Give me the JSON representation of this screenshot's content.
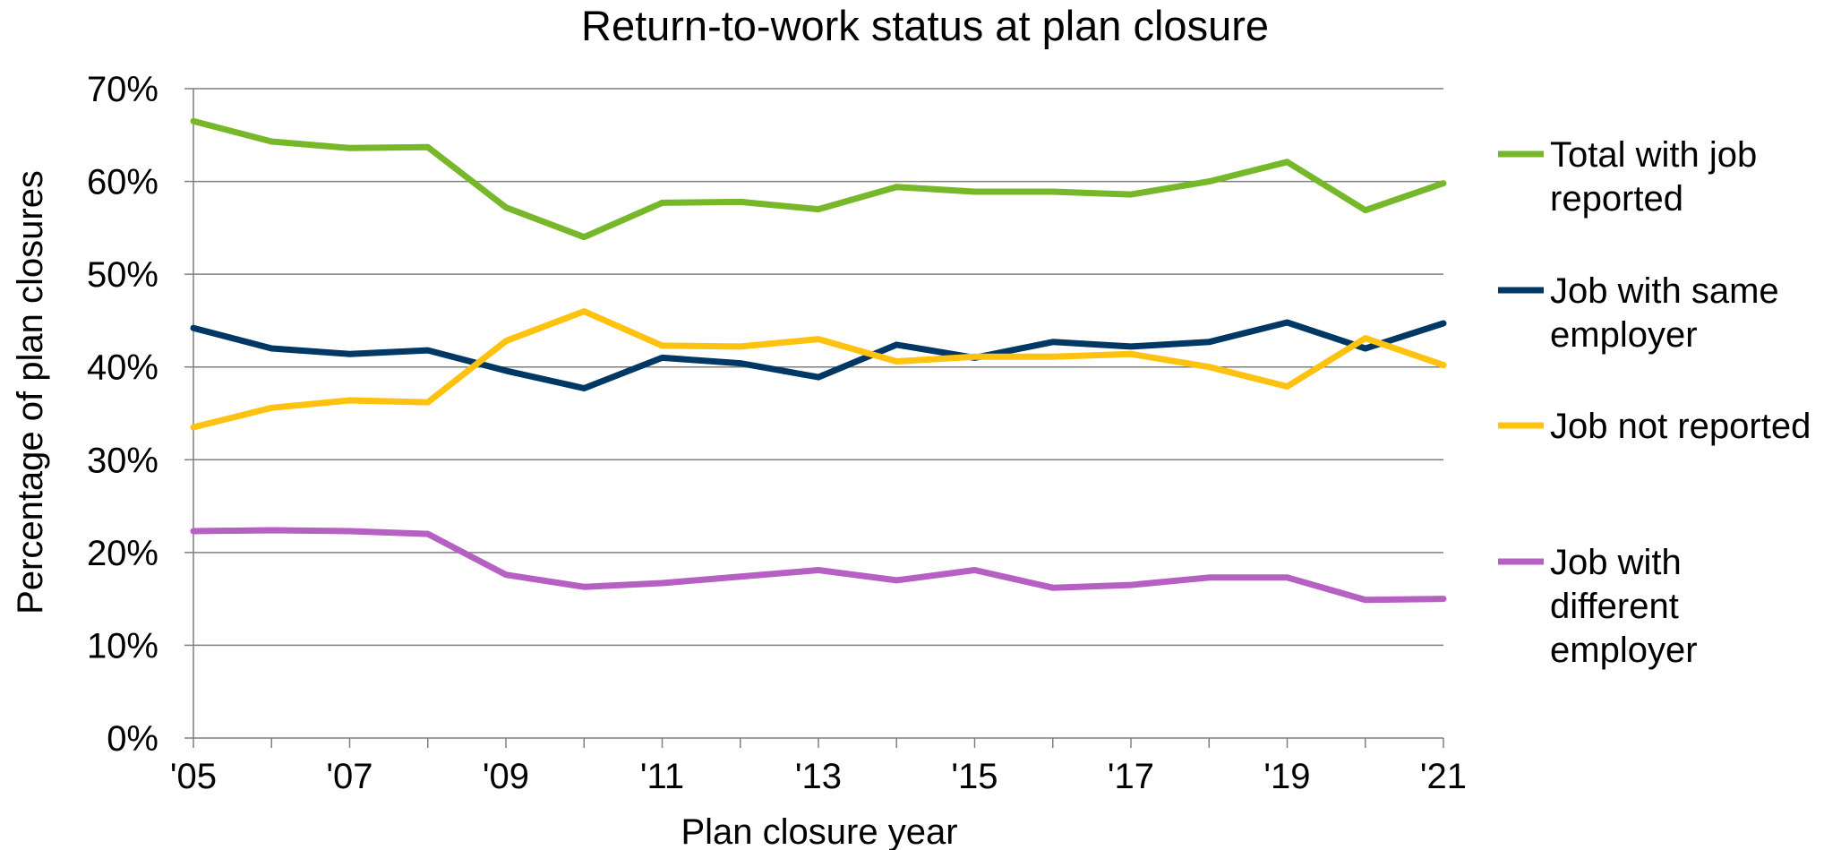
{
  "chart_data": {
    "type": "line",
    "title": "Return-to-work status at plan closure",
    "xlabel": "Plan closure year",
    "ylabel": "Percentage of plan closures",
    "x": [
      2005,
      2006,
      2007,
      2008,
      2009,
      2010,
      2011,
      2012,
      2013,
      2014,
      2015,
      2016,
      2017,
      2018,
      2019,
      2020,
      2021
    ],
    "x_tick_labels": [
      {
        "x": 2005,
        "label": "'05"
      },
      {
        "x": 2007,
        "label": "'07"
      },
      {
        "x": 2009,
        "label": "'09"
      },
      {
        "x": 2011,
        "label": "'11"
      },
      {
        "x": 2013,
        "label": "'13"
      },
      {
        "x": 2015,
        "label": "'15"
      },
      {
        "x": 2017,
        "label": "'17"
      },
      {
        "x": 2019,
        "label": "'19"
      },
      {
        "x": 2021,
        "label": "'21"
      }
    ],
    "ylim": [
      0,
      70
    ],
    "y_ticks": [
      {
        "value": 0,
        "label": "0%"
      },
      {
        "value": 10,
        "label": "10%"
      },
      {
        "value": 20,
        "label": "20%"
      },
      {
        "value": 30,
        "label": "30%"
      },
      {
        "value": 40,
        "label": "40%"
      },
      {
        "value": 50,
        "label": "50%"
      },
      {
        "value": 60,
        "label": "60%"
      },
      {
        "value": 70,
        "label": "70%"
      }
    ],
    "grid": true,
    "legend_position": "right",
    "series": [
      {
        "name": "Total with job reported",
        "legend_lines": [
          "Total with job",
          "reported"
        ],
        "color": "#76b82a",
        "values": [
          66.5,
          64.3,
          63.6,
          63.7,
          57.2,
          54.0,
          57.7,
          57.8,
          57.0,
          59.4,
          58.9,
          58.9,
          58.6,
          60.0,
          62.1,
          56.9,
          59.8
        ]
      },
      {
        "name": "Job with same employer",
        "legend_lines": [
          "Job with same",
          "employer"
        ],
        "color": "#003865",
        "values": [
          44.2,
          42.0,
          41.4,
          41.8,
          39.6,
          37.7,
          41.0,
          40.4,
          38.9,
          42.4,
          41.0,
          42.7,
          42.2,
          42.7,
          44.8,
          42.0,
          44.7
        ]
      },
      {
        "name": "Job not reported",
        "legend_lines": [
          "Job not reported"
        ],
        "color": "#ffc20e",
        "values": [
          33.5,
          35.6,
          36.4,
          36.2,
          42.8,
          46.0,
          42.3,
          42.2,
          43.0,
          40.6,
          41.1,
          41.1,
          41.4,
          40.0,
          37.9,
          43.1,
          40.2
        ]
      },
      {
        "name": "Job with different employer",
        "legend_lines": [
          "Job with",
          "different",
          "employer"
        ],
        "color": "#b660c4",
        "values": [
          22.3,
          22.4,
          22.3,
          22.0,
          17.6,
          16.3,
          16.7,
          17.4,
          18.1,
          17.0,
          18.1,
          16.2,
          16.5,
          17.3,
          17.3,
          14.9,
          15.0
        ]
      }
    ]
  }
}
